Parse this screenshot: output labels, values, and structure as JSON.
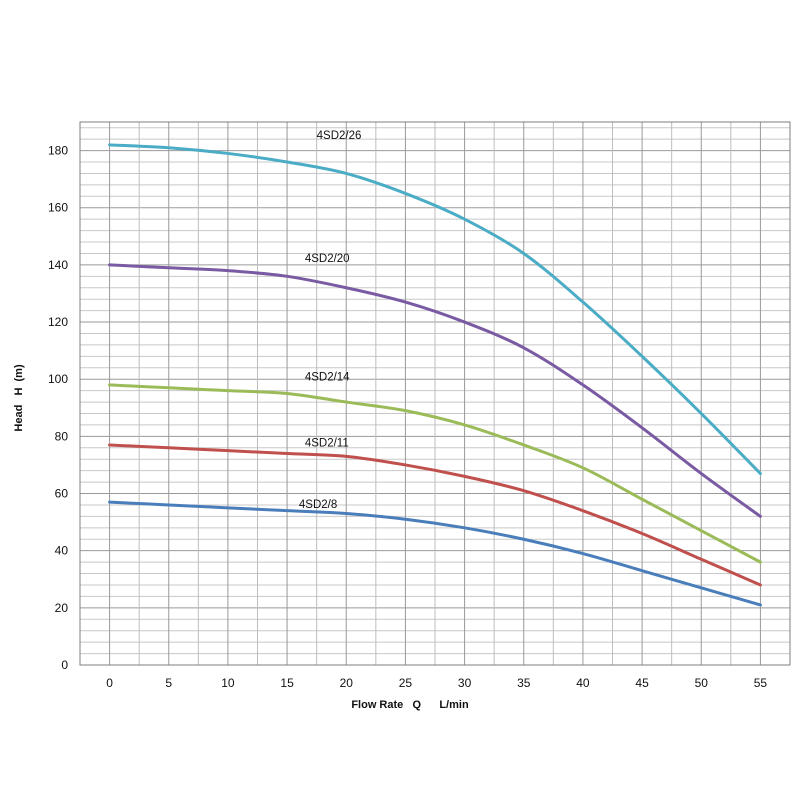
{
  "chart_data": {
    "type": "line",
    "title": "",
    "xlabel": "Flow Rate   Q      L/min",
    "ylabel": "Head   H  (m)",
    "xlim": [
      -2.5,
      57.5
    ],
    "ylim": [
      0,
      190
    ],
    "x_ticks": [
      0,
      5,
      10,
      15,
      20,
      25,
      30,
      35,
      40,
      45,
      50,
      55
    ],
    "y_ticks": [
      0,
      20,
      40,
      60,
      80,
      100,
      120,
      140,
      160,
      180
    ],
    "grid": true,
    "legend": "none",
    "series": [
      {
        "name": "4SD2/26",
        "color": "#4bacc6",
        "x": [
          0,
          5,
          10,
          15,
          20,
          25,
          30,
          35,
          40,
          45,
          50,
          55
        ],
        "y": [
          182,
          181,
          179,
          176,
          172,
          165,
          156,
          144,
          127,
          108,
          88,
          67
        ]
      },
      {
        "name": "4SD2/20",
        "color": "#7a5ba3",
        "x": [
          0,
          5,
          10,
          15,
          20,
          25,
          30,
          35,
          40,
          45,
          50,
          55
        ],
        "y": [
          140,
          139,
          138,
          136,
          132,
          127,
          120,
          111,
          98,
          83,
          67,
          52
        ]
      },
      {
        "name": "4SD2/14",
        "color": "#9bbb59",
        "x": [
          0,
          5,
          10,
          15,
          20,
          25,
          30,
          35,
          40,
          45,
          50,
          55
        ],
        "y": [
          98,
          97,
          96,
          95,
          92,
          89,
          84,
          77,
          69,
          58,
          47,
          36
        ]
      },
      {
        "name": "4SD2/11",
        "color": "#c0504d",
        "x": [
          0,
          5,
          10,
          15,
          20,
          25,
          30,
          35,
          40,
          45,
          50,
          55
        ],
        "y": [
          77,
          76,
          75,
          74,
          73,
          70,
          66,
          61,
          54,
          46,
          37,
          28
        ]
      },
      {
        "name": "4SD2/8",
        "color": "#4a7ebb",
        "x": [
          0,
          5,
          10,
          15,
          20,
          25,
          30,
          35,
          40,
          45,
          50,
          55
        ],
        "y": [
          57,
          56,
          55,
          54,
          53,
          51,
          48,
          44,
          39,
          33,
          27,
          21
        ]
      }
    ],
    "annotations": [
      {
        "text": "4SD2/26",
        "x": 17.5,
        "y": 184
      },
      {
        "text": "4SD2/20",
        "x": 16.5,
        "y": 141
      },
      {
        "text": "4SD2/14",
        "x": 16.5,
        "y": 99.5
      },
      {
        "text": "4SD2/11",
        "x": 16.5,
        "y": 76.5
      },
      {
        "text": "4SD2/8",
        "x": 16,
        "y": 55
      }
    ]
  }
}
